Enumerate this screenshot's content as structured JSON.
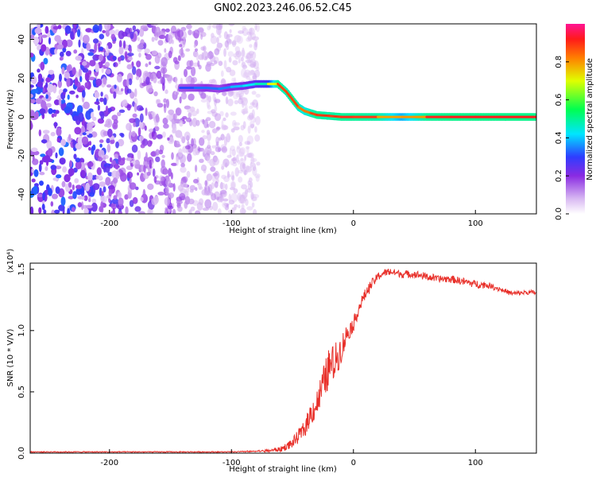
{
  "title": "GN02.2023.246.06.52.C45",
  "chart_data": [
    {
      "type": "heatmap",
      "xlabel": "Height of straight line (km)",
      "ylabel": "Frequency (Hz)",
      "xlim": [
        -265,
        150
      ],
      "ylim": [
        -50,
        48
      ],
      "x_ticks": [
        -200,
        -100,
        0,
        100
      ],
      "x_tick_labels": [
        "-200",
        "-100",
        "0",
        "100"
      ],
      "y_ticks": [
        -40,
        -20,
        0,
        20,
        40
      ],
      "y_tick_labels": [
        "-40",
        "-20",
        "0",
        "20",
        "40"
      ],
      "colorbar": {
        "label": "Normalized spectral amplitude",
        "range": [
          0,
          1
        ],
        "ticks": [
          0.0,
          0.2,
          0.4,
          0.6,
          0.8
        ],
        "tick_labels": [
          "0.0",
          "0.2",
          "0.4",
          "0.6",
          "0.8"
        ]
      },
      "noise_region": {
        "x_from": -265,
        "x_to": -78,
        "y_from": -50,
        "y_to": 48
      },
      "ridge": [
        {
          "x": -142,
          "y": 15,
          "a": 0.3
        },
        {
          "x": -130,
          "y": 15,
          "a": 0.32
        },
        {
          "x": -120,
          "y": 15,
          "a": 0.35
        },
        {
          "x": -110,
          "y": 14.5,
          "a": 0.32
        },
        {
          "x": -100,
          "y": 15.5,
          "a": 0.38
        },
        {
          "x": -90,
          "y": 16,
          "a": 0.4
        },
        {
          "x": -80,
          "y": 17,
          "a": 0.45
        },
        {
          "x": -70,
          "y": 17,
          "a": 0.5
        },
        {
          "x": -62,
          "y": 17,
          "a": 0.9
        },
        {
          "x": -55,
          "y": 13,
          "a": 0.85
        },
        {
          "x": -50,
          "y": 9,
          "a": 0.9
        },
        {
          "x": -45,
          "y": 5,
          "a": 0.85
        },
        {
          "x": -40,
          "y": 3,
          "a": 0.8
        },
        {
          "x": -35,
          "y": 2,
          "a": 0.85
        },
        {
          "x": -30,
          "y": 1,
          "a": 0.9
        },
        {
          "x": -20,
          "y": 0.5,
          "a": 0.88
        },
        {
          "x": -10,
          "y": 0,
          "a": 0.9
        },
        {
          "x": 0,
          "y": 0,
          "a": 0.9
        },
        {
          "x": 20,
          "y": 0,
          "a": 0.88
        },
        {
          "x": 40,
          "y": 0,
          "a": 0.7
        },
        {
          "x": 60,
          "y": 0,
          "a": 0.9
        },
        {
          "x": 80,
          "y": 0,
          "a": 0.92
        },
        {
          "x": 100,
          "y": 0,
          "a": 0.92
        },
        {
          "x": 120,
          "y": 0,
          "a": 0.92
        },
        {
          "x": 150,
          "y": 0,
          "a": 0.92
        }
      ]
    },
    {
      "type": "line",
      "xlabel": "Height of straight line (km)",
      "ylabel": "SNR (10 * V/V)",
      "scale_label": "(x10⁴)",
      "xlim": [
        -265,
        150
      ],
      "ylim": [
        0,
        1.55
      ],
      "x_ticks": [
        -200,
        -100,
        0,
        100
      ],
      "x_tick_labels": [
        "-200",
        "-100",
        "0",
        "100"
      ],
      "y_ticks": [
        0.0,
        0.5,
        1.0,
        1.5
      ],
      "y_tick_labels": [
        "0.0",
        "0.5",
        "1.0",
        "1.5"
      ],
      "series": [
        {
          "color": "#e8302a",
          "x": [
            -265,
            -200,
            -150,
            -100,
            -80,
            -70,
            -60,
            -50,
            -40,
            -35,
            -30,
            -25,
            -20,
            -15,
            -10,
            -5,
            0,
            5,
            10,
            15,
            20,
            25,
            30,
            35,
            40,
            50,
            60,
            70,
            80,
            90,
            100,
            110,
            120,
            130,
            140,
            150
          ],
          "y": [
            0.01,
            0.01,
            0.01,
            0.01,
            0.015,
            0.02,
            0.03,
            0.08,
            0.2,
            0.32,
            0.4,
            0.55,
            0.7,
            0.75,
            0.85,
            0.98,
            1.05,
            1.2,
            1.3,
            1.38,
            1.44,
            1.47,
            1.48,
            1.47,
            1.46,
            1.46,
            1.44,
            1.42,
            1.42,
            1.4,
            1.38,
            1.37,
            1.34,
            1.3,
            1.31,
            1.31
          ],
          "noise": [
            0,
            0,
            0,
            0,
            0.005,
            0.01,
            0.02,
            0.04,
            0.07,
            0.1,
            0.12,
            0.15,
            0.16,
            0.15,
            0.12,
            0.08,
            0.06,
            0.05,
            0.05,
            0.04,
            0.035,
            0.03,
            0.03,
            0.03,
            0.03,
            0.03,
            0.03,
            0.03,
            0.03,
            0.03,
            0.03,
            0.025,
            0.02,
            0.02,
            0.02,
            0.02
          ]
        }
      ]
    }
  ]
}
